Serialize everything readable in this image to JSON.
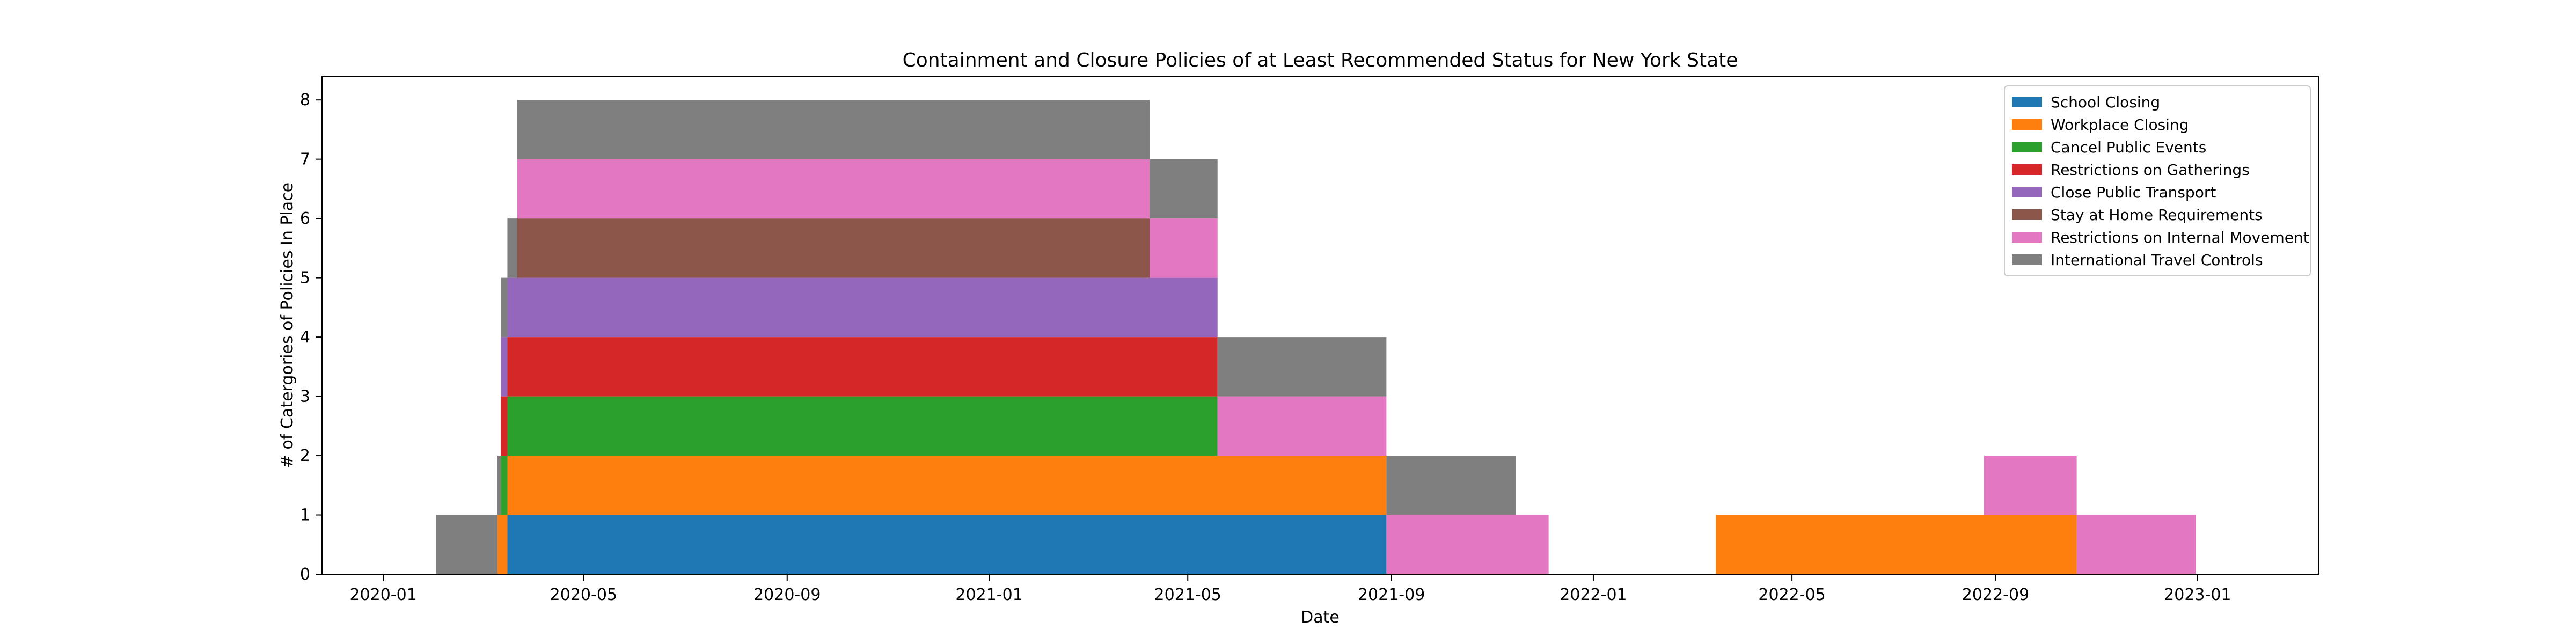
{
  "chart_data": {
    "type": "area",
    "stacked": true,
    "title": "Containment and Closure Policies of at Least Recommended Status for New York State",
    "xlabel": "Date",
    "ylabel": "# of Catergories of Policies In Place",
    "xlim": [
      "2019-11-25",
      "2023-03-15"
    ],
    "ylim": [
      0,
      8.4
    ],
    "x_ticks": [
      "2020-01",
      "2020-05",
      "2020-09",
      "2021-01",
      "2021-05",
      "2021-09",
      "2022-01",
      "2022-05",
      "2022-09",
      "2023-01"
    ],
    "y_ticks": [
      0,
      1,
      2,
      3,
      4,
      5,
      6,
      7,
      8
    ],
    "grid": false,
    "legend_position": "top-right",
    "series": [
      {
        "name": "School Closing",
        "color": "#1f77b4",
        "intervals": [
          [
            "2020-03-16",
            "2021-08-29"
          ]
        ]
      },
      {
        "name": "Workplace Closing",
        "color": "#ff7f0e",
        "intervals": [
          [
            "2020-03-10",
            "2021-08-29"
          ],
          [
            "2022-03-16",
            "2022-10-20"
          ]
        ]
      },
      {
        "name": "Cancel Public Events",
        "color": "#2ca02c",
        "intervals": [
          [
            "2020-03-12",
            "2021-05-19"
          ]
        ]
      },
      {
        "name": "Restrictions on Gatherings",
        "color": "#d62728",
        "intervals": [
          [
            "2020-03-12",
            "2021-05-19"
          ]
        ]
      },
      {
        "name": "Close Public Transport",
        "color": "#9467bd",
        "intervals": [
          [
            "2020-03-12",
            "2021-05-19"
          ]
        ]
      },
      {
        "name": "Stay at Home Requirements",
        "color": "#8c564b",
        "intervals": [
          [
            "2020-03-22",
            "2021-04-08"
          ]
        ]
      },
      {
        "name": "Restrictions on Internal Movement",
        "color": "#e377c2",
        "intervals": [
          [
            "2020-03-22",
            "2021-12-05"
          ],
          [
            "2022-08-25",
            "2022-12-31"
          ]
        ]
      },
      {
        "name": "International Travel Controls",
        "color": "#7f7f7f",
        "intervals": [
          [
            "2020-02-02",
            "2021-11-15"
          ]
        ]
      }
    ]
  }
}
